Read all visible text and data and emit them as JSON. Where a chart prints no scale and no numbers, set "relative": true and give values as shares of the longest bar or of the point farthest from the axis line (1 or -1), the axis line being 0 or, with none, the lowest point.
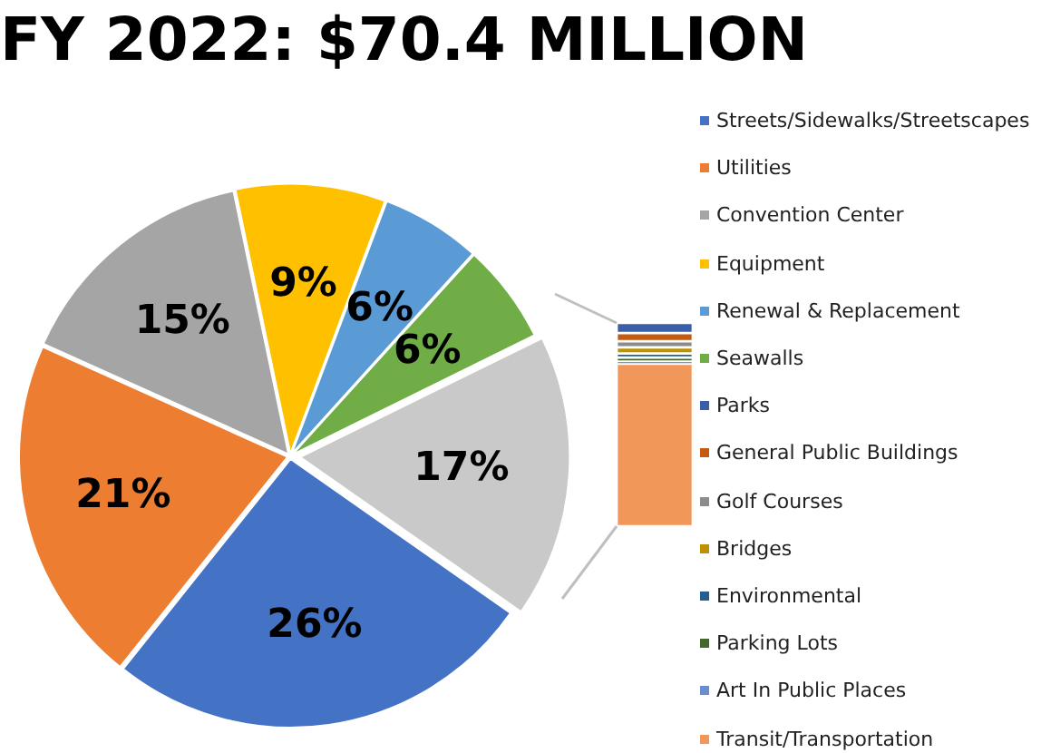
{
  "chart_data": [
    {
      "type": "pie",
      "title": "FY 2022: $70.4 MILLION",
      "categories": [
        "Streets/Sidewalks/Streetscapes",
        "Utilities",
        "Convention Center",
        "Equipment",
        "Renewal & Replacement",
        "Seawalls",
        null
      ],
      "values": [
        26,
        21,
        15,
        9,
        6,
        6,
        17
      ],
      "value_labels": [
        "26%",
        "21%",
        "15%",
        "9%",
        "6%",
        "6%",
        "17%"
      ],
      "colors": [
        "#4472c4",
        "#ed7d31",
        "#a5a5a5",
        "#ffc000",
        "#5b9bd5",
        "#70ad47",
        "#c9c9c9"
      ],
      "legend": "right"
    },
    {
      "type": "bar",
      "stacked": true,
      "relative": true,
      "categories": [
        null
      ],
      "legend": "right",
      "series": [
        {
          "name": "Transit/Transportation",
          "color": "#f1975a",
          "values": [
            0.8
          ]
        },
        {
          "name": "Art In Public Places",
          "color": "#698ed0",
          "values": [
            0.01
          ]
        },
        {
          "name": "Parking Lots",
          "color": "#43682b",
          "values": [
            0.02
          ]
        },
        {
          "name": "Environmental",
          "color": "#255e91",
          "values": [
            0.02
          ]
        },
        {
          "name": "Bridges",
          "color": "#bf9000",
          "values": [
            0.03
          ]
        },
        {
          "name": "Golf Courses",
          "color": "#8c8c8c",
          "values": [
            0.03
          ]
        },
        {
          "name": "General Public Buildings",
          "color": "#c55a11",
          "values": [
            0.04
          ]
        },
        {
          "name": "Parks",
          "color": "#3a5ea8",
          "values": [
            0.05
          ]
        }
      ]
    }
  ]
}
